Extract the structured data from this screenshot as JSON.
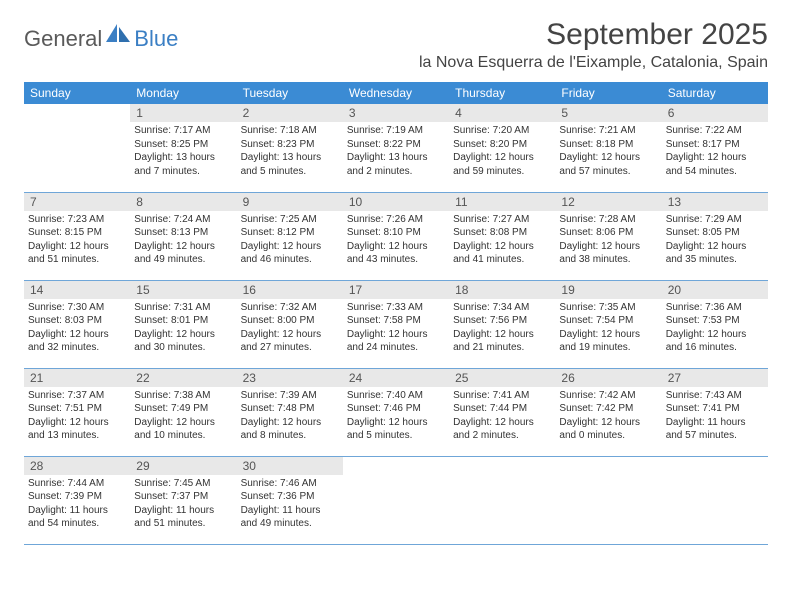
{
  "brand": {
    "general": "General",
    "blue": "Blue"
  },
  "title": "September 2025",
  "location": "la Nova Esquerra de l'Eixample, Catalonia, Spain",
  "colors": {
    "header_bg": "#3b8bd4",
    "header_text": "#ffffff",
    "daynum_bg": "#e8e8e8",
    "row_border": "#6fa6d8",
    "logo_accent": "#3b7fc4",
    "logo_gray": "#5a5a5a"
  },
  "weekdays": [
    "Sunday",
    "Monday",
    "Tuesday",
    "Wednesday",
    "Thursday",
    "Friday",
    "Saturday"
  ],
  "weeks": [
    [
      {
        "day": "",
        "sunrise": "",
        "sunset": "",
        "daylight": ""
      },
      {
        "day": "1",
        "sunrise": "Sunrise: 7:17 AM",
        "sunset": "Sunset: 8:25 PM",
        "daylight": "Daylight: 13 hours and 7 minutes."
      },
      {
        "day": "2",
        "sunrise": "Sunrise: 7:18 AM",
        "sunset": "Sunset: 8:23 PM",
        "daylight": "Daylight: 13 hours and 5 minutes."
      },
      {
        "day": "3",
        "sunrise": "Sunrise: 7:19 AM",
        "sunset": "Sunset: 8:22 PM",
        "daylight": "Daylight: 13 hours and 2 minutes."
      },
      {
        "day": "4",
        "sunrise": "Sunrise: 7:20 AM",
        "sunset": "Sunset: 8:20 PM",
        "daylight": "Daylight: 12 hours and 59 minutes."
      },
      {
        "day": "5",
        "sunrise": "Sunrise: 7:21 AM",
        "sunset": "Sunset: 8:18 PM",
        "daylight": "Daylight: 12 hours and 57 minutes."
      },
      {
        "day": "6",
        "sunrise": "Sunrise: 7:22 AM",
        "sunset": "Sunset: 8:17 PM",
        "daylight": "Daylight: 12 hours and 54 minutes."
      }
    ],
    [
      {
        "day": "7",
        "sunrise": "Sunrise: 7:23 AM",
        "sunset": "Sunset: 8:15 PM",
        "daylight": "Daylight: 12 hours and 51 minutes."
      },
      {
        "day": "8",
        "sunrise": "Sunrise: 7:24 AM",
        "sunset": "Sunset: 8:13 PM",
        "daylight": "Daylight: 12 hours and 49 minutes."
      },
      {
        "day": "9",
        "sunrise": "Sunrise: 7:25 AM",
        "sunset": "Sunset: 8:12 PM",
        "daylight": "Daylight: 12 hours and 46 minutes."
      },
      {
        "day": "10",
        "sunrise": "Sunrise: 7:26 AM",
        "sunset": "Sunset: 8:10 PM",
        "daylight": "Daylight: 12 hours and 43 minutes."
      },
      {
        "day": "11",
        "sunrise": "Sunrise: 7:27 AM",
        "sunset": "Sunset: 8:08 PM",
        "daylight": "Daylight: 12 hours and 41 minutes."
      },
      {
        "day": "12",
        "sunrise": "Sunrise: 7:28 AM",
        "sunset": "Sunset: 8:06 PM",
        "daylight": "Daylight: 12 hours and 38 minutes."
      },
      {
        "day": "13",
        "sunrise": "Sunrise: 7:29 AM",
        "sunset": "Sunset: 8:05 PM",
        "daylight": "Daylight: 12 hours and 35 minutes."
      }
    ],
    [
      {
        "day": "14",
        "sunrise": "Sunrise: 7:30 AM",
        "sunset": "Sunset: 8:03 PM",
        "daylight": "Daylight: 12 hours and 32 minutes."
      },
      {
        "day": "15",
        "sunrise": "Sunrise: 7:31 AM",
        "sunset": "Sunset: 8:01 PM",
        "daylight": "Daylight: 12 hours and 30 minutes."
      },
      {
        "day": "16",
        "sunrise": "Sunrise: 7:32 AM",
        "sunset": "Sunset: 8:00 PM",
        "daylight": "Daylight: 12 hours and 27 minutes."
      },
      {
        "day": "17",
        "sunrise": "Sunrise: 7:33 AM",
        "sunset": "Sunset: 7:58 PM",
        "daylight": "Daylight: 12 hours and 24 minutes."
      },
      {
        "day": "18",
        "sunrise": "Sunrise: 7:34 AM",
        "sunset": "Sunset: 7:56 PM",
        "daylight": "Daylight: 12 hours and 21 minutes."
      },
      {
        "day": "19",
        "sunrise": "Sunrise: 7:35 AM",
        "sunset": "Sunset: 7:54 PM",
        "daylight": "Daylight: 12 hours and 19 minutes."
      },
      {
        "day": "20",
        "sunrise": "Sunrise: 7:36 AM",
        "sunset": "Sunset: 7:53 PM",
        "daylight": "Daylight: 12 hours and 16 minutes."
      }
    ],
    [
      {
        "day": "21",
        "sunrise": "Sunrise: 7:37 AM",
        "sunset": "Sunset: 7:51 PM",
        "daylight": "Daylight: 12 hours and 13 minutes."
      },
      {
        "day": "22",
        "sunrise": "Sunrise: 7:38 AM",
        "sunset": "Sunset: 7:49 PM",
        "daylight": "Daylight: 12 hours and 10 minutes."
      },
      {
        "day": "23",
        "sunrise": "Sunrise: 7:39 AM",
        "sunset": "Sunset: 7:48 PM",
        "daylight": "Daylight: 12 hours and 8 minutes."
      },
      {
        "day": "24",
        "sunrise": "Sunrise: 7:40 AM",
        "sunset": "Sunset: 7:46 PM",
        "daylight": "Daylight: 12 hours and 5 minutes."
      },
      {
        "day": "25",
        "sunrise": "Sunrise: 7:41 AM",
        "sunset": "Sunset: 7:44 PM",
        "daylight": "Daylight: 12 hours and 2 minutes."
      },
      {
        "day": "26",
        "sunrise": "Sunrise: 7:42 AM",
        "sunset": "Sunset: 7:42 PM",
        "daylight": "Daylight: 12 hours and 0 minutes."
      },
      {
        "day": "27",
        "sunrise": "Sunrise: 7:43 AM",
        "sunset": "Sunset: 7:41 PM",
        "daylight": "Daylight: 11 hours and 57 minutes."
      }
    ],
    [
      {
        "day": "28",
        "sunrise": "Sunrise: 7:44 AM",
        "sunset": "Sunset: 7:39 PM",
        "daylight": "Daylight: 11 hours and 54 minutes."
      },
      {
        "day": "29",
        "sunrise": "Sunrise: 7:45 AM",
        "sunset": "Sunset: 7:37 PM",
        "daylight": "Daylight: 11 hours and 51 minutes."
      },
      {
        "day": "30",
        "sunrise": "Sunrise: 7:46 AM",
        "sunset": "Sunset: 7:36 PM",
        "daylight": "Daylight: 11 hours and 49 minutes."
      },
      {
        "day": "",
        "sunrise": "",
        "sunset": "",
        "daylight": ""
      },
      {
        "day": "",
        "sunrise": "",
        "sunset": "",
        "daylight": ""
      },
      {
        "day": "",
        "sunrise": "",
        "sunset": "",
        "daylight": ""
      },
      {
        "day": "",
        "sunrise": "",
        "sunset": "",
        "daylight": ""
      }
    ]
  ]
}
